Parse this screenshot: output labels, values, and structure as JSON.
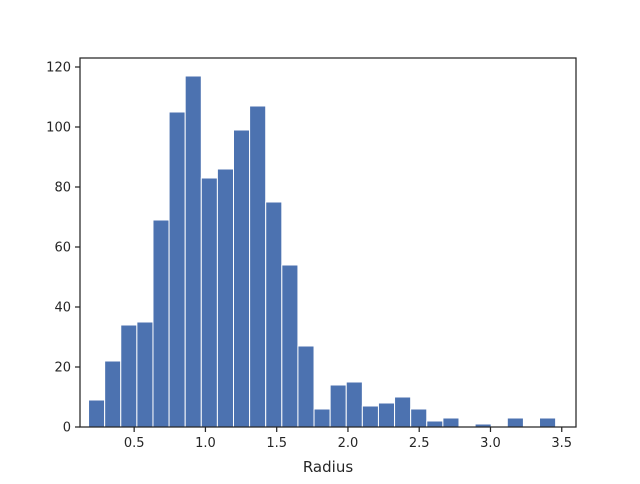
{
  "chart_data": {
    "type": "bar",
    "title": "",
    "xlabel": "Radius",
    "ylabel": "",
    "xlim": [
      0.12,
      3.6
    ],
    "ylim": [
      0,
      123
    ],
    "grid": false,
    "bar_color": "#4c72b0",
    "edge_color": "#ffffff",
    "bin_edges": [
      0.18,
      0.293,
      0.406,
      0.519,
      0.632,
      0.745,
      0.858,
      0.971,
      1.084,
      1.197,
      1.31,
      1.423,
      1.536,
      1.649,
      1.762,
      1.875,
      1.988,
      2.101,
      2.214,
      2.327,
      2.44,
      2.553,
      2.666,
      2.779,
      2.892,
      3.005,
      3.118,
      3.231,
      3.344,
      3.457
    ],
    "values": [
      9,
      22,
      34,
      35,
      69,
      105,
      117,
      83,
      86,
      99,
      107,
      75,
      54,
      27,
      6,
      14,
      15,
      7,
      8,
      10,
      6,
      2,
      3,
      0,
      1,
      0,
      3,
      0,
      3
    ],
    "x_ticks": [
      {
        "value": 0.5,
        "label": "0.5"
      },
      {
        "value": 1.0,
        "label": "1.0"
      },
      {
        "value": 1.5,
        "label": "1.5"
      },
      {
        "value": 2.0,
        "label": "2.0"
      },
      {
        "value": 2.5,
        "label": "2.5"
      },
      {
        "value": 3.0,
        "label": "3.0"
      },
      {
        "value": 3.5,
        "label": "3.5"
      }
    ],
    "y_ticks": [
      {
        "value": 0,
        "label": "0"
      },
      {
        "value": 20,
        "label": "20"
      },
      {
        "value": 40,
        "label": "40"
      },
      {
        "value": 60,
        "label": "60"
      },
      {
        "value": 80,
        "label": "80"
      },
      {
        "value": 100,
        "label": "100"
      },
      {
        "value": 120,
        "label": "120"
      }
    ]
  }
}
